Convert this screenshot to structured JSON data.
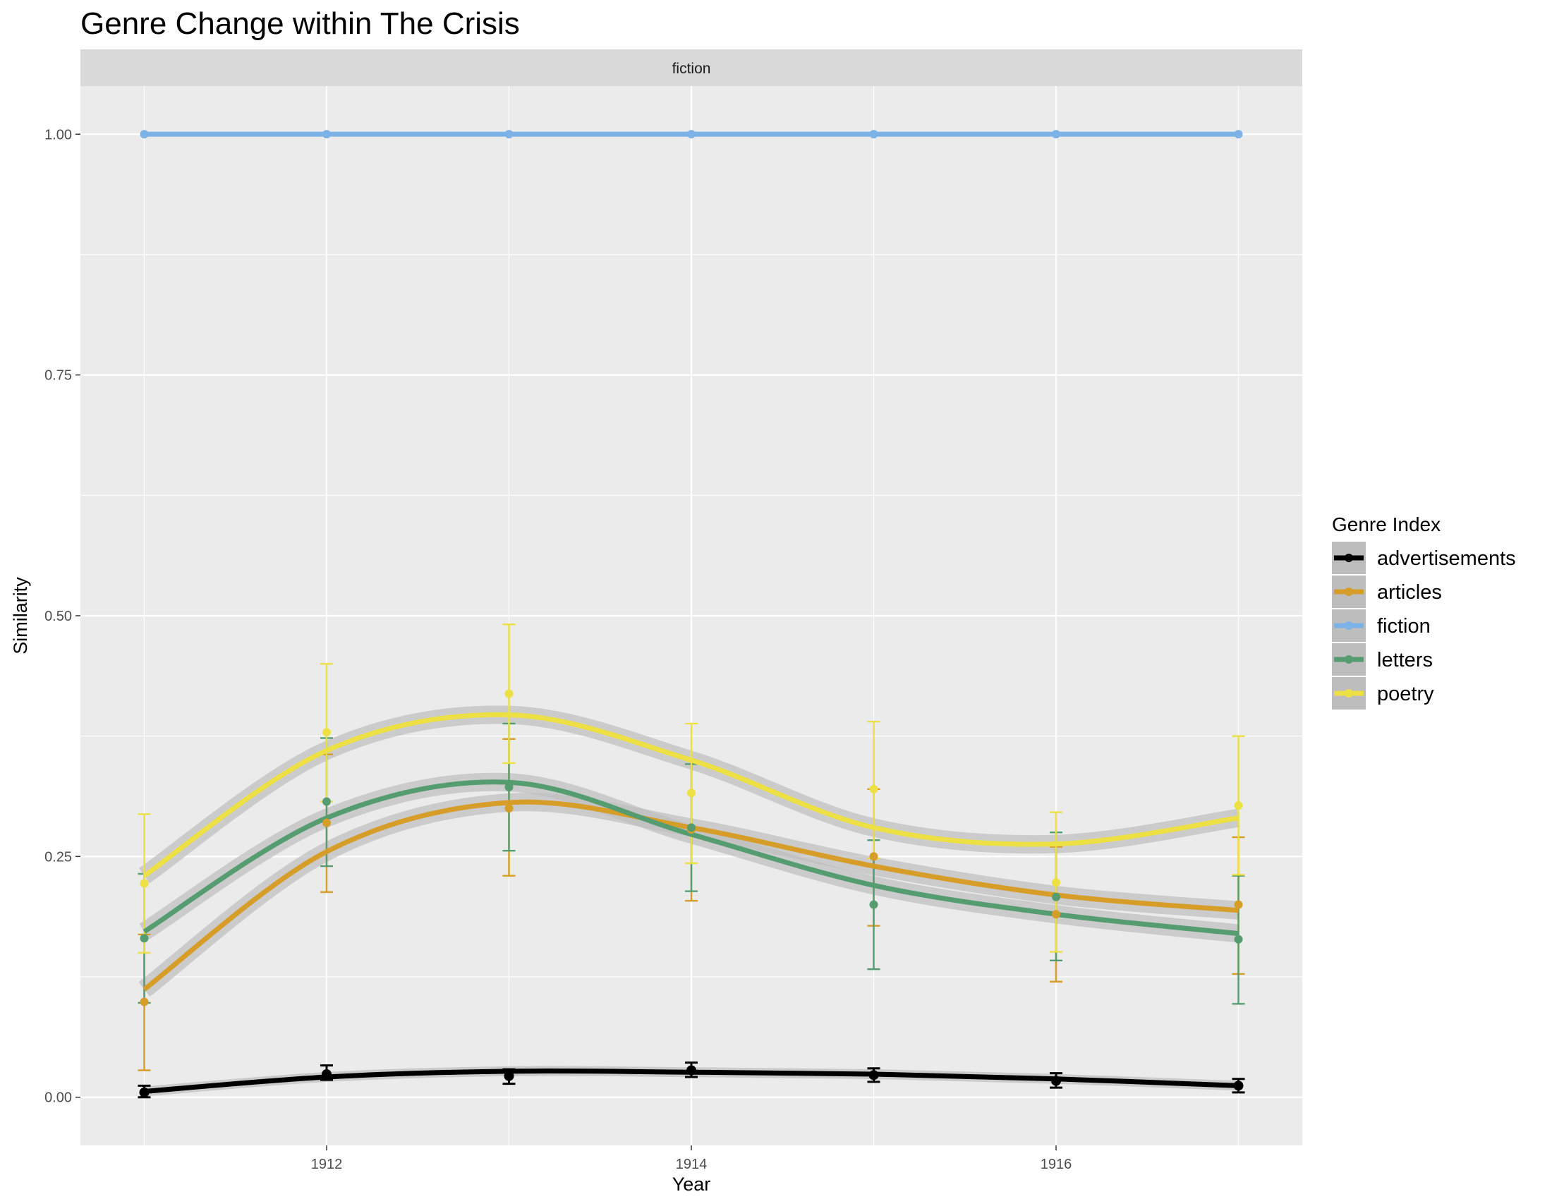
{
  "chart_data": {
    "type": "line",
    "title": "Genre Change within The Crisis",
    "facet": "fiction",
    "xlabel": "Year",
    "ylabel": "Similarity",
    "xlim": [
      1910.65,
      1917.35
    ],
    "ylim": [
      -0.05,
      1.05
    ],
    "x_ticks": [
      1912,
      1914,
      1916
    ],
    "y_ticks": [
      0.0,
      0.25,
      0.5,
      0.75,
      1.0
    ],
    "x_tick_labels": [
      "1912",
      "1914",
      "1916"
    ],
    "y_tick_labels": [
      "0.00",
      "0.25",
      "0.50",
      "0.75",
      "1.00"
    ],
    "grid": true,
    "legend_title": "Genre Index",
    "legend_position": "right",
    "x": [
      1911,
      1912,
      1913,
      1914,
      1915,
      1916,
      1917
    ],
    "series": [
      {
        "name": "advertisements",
        "color": "#000000",
        "values": [
          0.005,
          0.024,
          0.022,
          0.028,
          0.023,
          0.017,
          0.012
        ],
        "err_low": [
          0.0,
          0.018,
          0.014,
          0.021,
          0.016,
          0.01,
          0.005
        ],
        "err_high": [
          0.012,
          0.033,
          0.029,
          0.036,
          0.03,
          0.025,
          0.019
        ],
        "smooth": [
          0.006,
          0.021,
          0.027,
          0.026,
          0.024,
          0.019,
          0.012
        ]
      },
      {
        "name": "articles",
        "color": "#d69d29",
        "values": [
          0.099,
          0.285,
          0.3,
          0.278,
          0.25,
          0.19,
          0.2
        ],
        "err_low": [
          0.028,
          0.213,
          0.23,
          0.204,
          0.178,
          0.12,
          0.128
        ],
        "err_high": [
          0.169,
          0.356,
          0.372,
          0.35,
          0.32,
          0.26,
          0.27
        ],
        "smooth": [
          0.112,
          0.255,
          0.306,
          0.28,
          0.24,
          0.21,
          0.194
        ]
      },
      {
        "name": "fiction",
        "color": "#7cb2e6",
        "values": [
          1.0,
          1.0,
          1.0,
          1.0,
          1.0,
          1.0,
          1.0
        ],
        "err_low": [
          1.0,
          1.0,
          1.0,
          1.0,
          1.0,
          1.0,
          1.0
        ],
        "err_high": [
          1.0,
          1.0,
          1.0,
          1.0,
          1.0,
          1.0,
          1.0
        ],
        "smooth": [
          1.0,
          1.0,
          1.0,
          1.0,
          1.0,
          1.0,
          1.0
        ]
      },
      {
        "name": "letters",
        "color": "#559c70",
        "values": [
          0.165,
          0.307,
          0.322,
          0.28,
          0.2,
          0.208,
          0.164
        ],
        "err_low": [
          0.098,
          0.24,
          0.256,
          0.214,
          0.133,
          0.142,
          0.097
        ],
        "err_high": [
          0.232,
          0.373,
          0.388,
          0.346,
          0.267,
          0.275,
          0.23
        ],
        "smooth": [
          0.172,
          0.29,
          0.327,
          0.273,
          0.22,
          0.19,
          0.17
        ]
      },
      {
        "name": "poetry",
        "color": "#ede045",
        "values": [
          0.222,
          0.379,
          0.419,
          0.316,
          0.32,
          0.223,
          0.303
        ],
        "err_low": [
          0.15,
          0.307,
          0.347,
          0.243,
          0.248,
          0.151,
          0.231
        ],
        "err_high": [
          0.294,
          0.45,
          0.491,
          0.388,
          0.39,
          0.296,
          0.375
        ],
        "smooth": [
          0.23,
          0.36,
          0.397,
          0.35,
          0.28,
          0.263,
          0.29
        ]
      }
    ]
  }
}
